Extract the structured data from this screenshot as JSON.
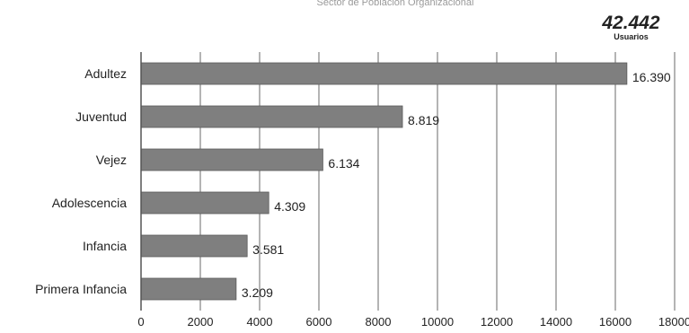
{
  "header": {
    "caption": "Sector de Población Organizacional",
    "total_value": "42.442",
    "total_unit": "Usuarios"
  },
  "chart_data": {
    "type": "bar",
    "orientation": "horizontal",
    "title": "",
    "xlabel": "",
    "ylabel": "",
    "categories": [
      "Adultez",
      "Juventud",
      "Vejez",
      "Adolescencia",
      "Infancia",
      "Primera Infancia"
    ],
    "values": [
      16390,
      8819,
      6134,
      4309,
      3581,
      3209
    ],
    "value_labels": [
      "16.390",
      "8.819",
      "6.134",
      "4.309",
      "3.581",
      "3.209"
    ],
    "xlim": [
      0,
      18000
    ],
    "xticks": [
      0,
      2000,
      4000,
      6000,
      8000,
      10000,
      12000,
      14000,
      16000,
      18000
    ],
    "xtick_labels": [
      "0",
      "2000",
      "4000",
      "6000",
      "8000",
      "10000",
      "12000",
      "14000",
      "16000",
      "18000"
    ],
    "grid": "vertical",
    "legend": "none",
    "colors": {
      "bar": "#7f7f7f",
      "bar_edge": "#5a5a5a",
      "grid": "#8c8c8c",
      "axis": "#555555"
    }
  }
}
